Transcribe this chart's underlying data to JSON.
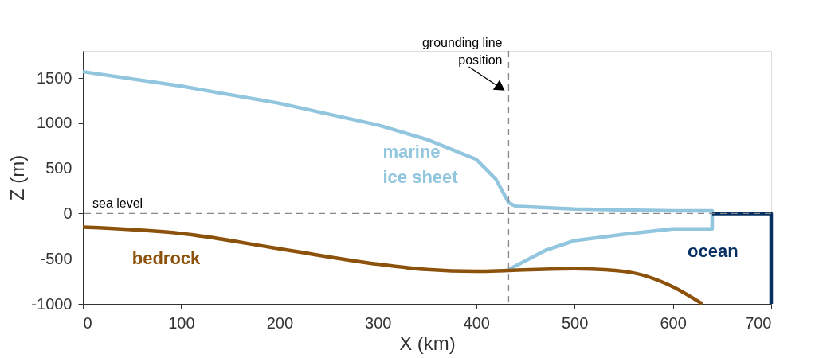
{
  "chart_data": {
    "type": "line",
    "xlabel": "X (km)",
    "ylabel": "Z (m)",
    "xlim": [
      0,
      700
    ],
    "ylim": [
      -1000,
      1800
    ],
    "xticks": [
      0,
      100,
      200,
      300,
      400,
      500,
      600,
      700
    ],
    "yticks": [
      -1000,
      -500,
      0,
      500,
      1000,
      1500
    ],
    "grid": false,
    "legend": false,
    "marker": "none",
    "line_style": "solid",
    "series": [
      {
        "name": "marine ice sheet",
        "color": "#92c5de",
        "x": [
          0,
          100,
          200,
          300,
          350,
          400,
          420,
          433,
          440,
          500,
          550,
          600,
          640,
          640,
          600,
          550,
          500,
          470,
          433
        ],
        "values": [
          1570,
          1410,
          1220,
          980,
          820,
          600,
          380,
          120,
          80,
          50,
          40,
          30,
          30,
          -170,
          -170,
          -230,
          -300,
          -410,
          -620
        ]
      },
      {
        "name": "bedrock",
        "color": "#8c510a",
        "x": [
          0,
          100,
          200,
          300,
          350,
          400,
          433,
          500,
          550,
          600,
          630
        ],
        "values": [
          -150,
          -220,
          -390,
          -560,
          -620,
          -640,
          -630,
          -610,
          -640,
          -810,
          -1000
        ]
      },
      {
        "name": "ocean",
        "color": "#053061",
        "x": [
          640,
          700,
          700
        ],
        "values": [
          0,
          0,
          -1000
        ]
      }
    ],
    "ref_lines": [
      {
        "axis": "x",
        "value": 433,
        "label": "grounding line position",
        "color": "#888888",
        "line_style": "dashed"
      },
      {
        "axis": "y",
        "value": 0,
        "label": "sea level",
        "color": "#888888",
        "line_style": "dashed"
      }
    ]
  }
}
